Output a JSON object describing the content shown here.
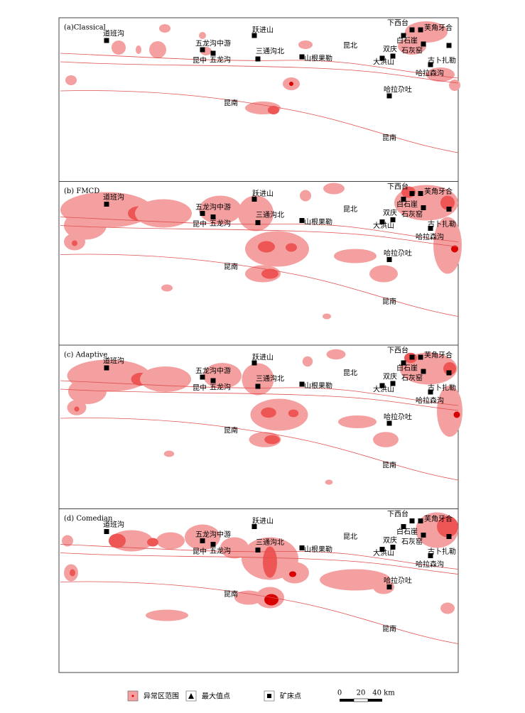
{
  "panels": [
    {
      "title": "(a)Classical"
    },
    {
      "title": "(b) FMCD"
    },
    {
      "title": "(c) Adaptive"
    },
    {
      "title": "(d) Comedian"
    }
  ],
  "place_names": [
    "道班沟",
    "五龙沟中游",
    "五龙沟",
    "昆中",
    "跃进山",
    "三通沟北",
    "山根果勒",
    "昆北",
    "下西台",
    "芙角牙合",
    "白石崖",
    "石灰窑",
    "双庆",
    "大洪山",
    "古卜扎勒",
    "哈拉森沟",
    "哈拉尕吐",
    "昆南",
    "昆南"
  ],
  "legend": {
    "anomaly": "异常区范围",
    "max_point": "最大值点",
    "deposit": "矿床点"
  },
  "scale_bar": {
    "labels": [
      "0",
      "20",
      "40 km"
    ]
  }
}
